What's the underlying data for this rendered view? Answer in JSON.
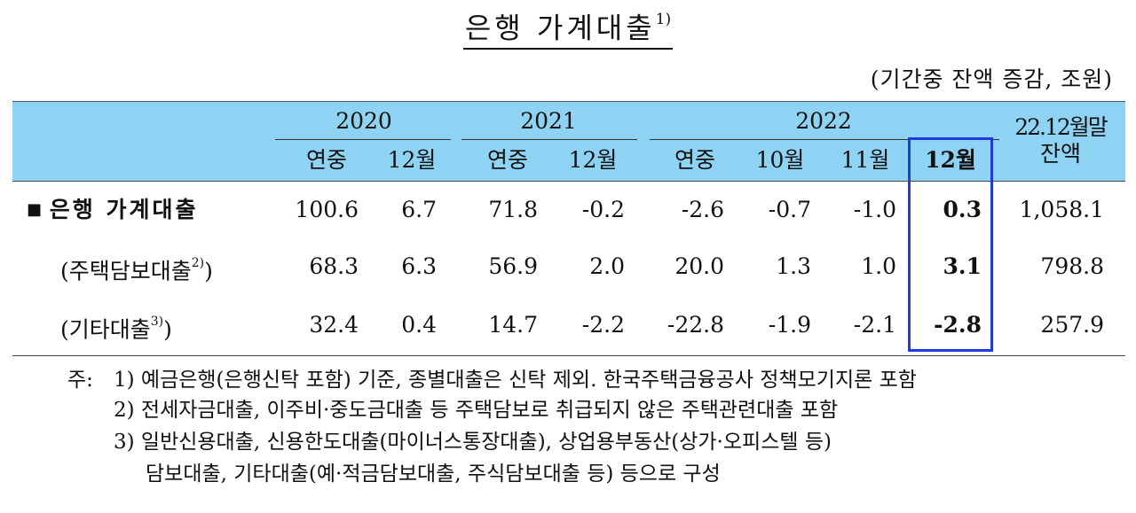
{
  "title": "은행 가계대출",
  "title_note": "1)",
  "unit": "(기간중 잔액 증감, 조원)",
  "years": [
    "2020",
    "2021",
    "2022"
  ],
  "balance_header": [
    "22.12월말",
    "잔액"
  ],
  "sub_headers": [
    "연중",
    "12월",
    "연중",
    "12월",
    "연중",
    "10월",
    "11월",
    "12월"
  ],
  "rows": [
    {
      "bullet": "■",
      "label": "은행 가계대출",
      "note": "",
      "values": [
        "100.6",
        "6.7",
        "71.8",
        "-0.2",
        "-2.6",
        "-0.7",
        "-1.0",
        "0.3",
        "1,058.1"
      ]
    },
    {
      "bullet": "",
      "label": "(주택담보대출",
      "note": "2)",
      "close": ")",
      "values": [
        "68.3",
        "6.3",
        "56.9",
        "2.0",
        "20.0",
        "1.3",
        "1.0",
        "3.1",
        "798.8"
      ]
    },
    {
      "bullet": "",
      "label": "(기타대출",
      "note": "3)",
      "close": ")",
      "values": [
        "32.4",
        "0.4",
        "14.7",
        "-2.2",
        "-22.8",
        "-1.9",
        "-2.1",
        "-2.8",
        "257.9"
      ]
    }
  ],
  "notes": {
    "prefix": "주:",
    "n1": "1) 예금은행(은행신탁 포함) 기준, 종별대출은 신탁 제외. 한국주택금융공사 정책모기지론 포함",
    "n2": "2) 전세자금대출, 이주비·중도금대출 등 주택담보로 취급되지 않은 주택관련대출 포함",
    "n3a": "3) 일반신용대출, 신용한도대출(마이너스통장대출), 상업용부동산(상가·오피스텔 등)",
    "n3b": "담보대출, 기타대출(예·적금담보대출, 주식담보대출 등) 등으로 구성"
  },
  "colors": {
    "header_bg": "#8fd3f4",
    "highlight": "#1f3be0"
  }
}
